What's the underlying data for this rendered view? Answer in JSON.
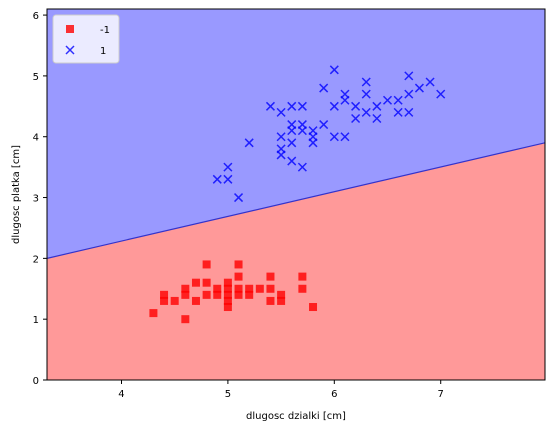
{
  "chart_data": {
    "type": "scatter",
    "xlabel": "dlugosc dzialki [cm]",
    "ylabel": "dlugosc platka [cm]",
    "xlim": [
      3.3,
      7.98
    ],
    "ylim": [
      0,
      6.1
    ],
    "x_ticks": [
      "4",
      "5",
      "6",
      "7"
    ],
    "y_ticks": [
      "0",
      "1",
      "2",
      "3",
      "4",
      "5",
      "6"
    ],
    "grid": false,
    "legend_position": "top-left",
    "decision_boundary": {
      "points": [
        [
          3.3,
          2.0
        ],
        [
          7.98,
          3.9
        ]
      ],
      "upper_region_label": "1",
      "lower_region_label": "-1",
      "upper_color": "#9999ff",
      "lower_color": "#ff9999",
      "line_color": "#3333cc"
    },
    "series": [
      {
        "name": "-1",
        "marker": "square",
        "color": "#ff0000",
        "points": [
          [
            4.3,
            1.1
          ],
          [
            4.4,
            1.3
          ],
          [
            4.4,
            1.4
          ],
          [
            4.5,
            1.3
          ],
          [
            4.6,
            1.0
          ],
          [
            4.6,
            1.4
          ],
          [
            4.6,
            1.5
          ],
          [
            4.7,
            1.3
          ],
          [
            4.7,
            1.6
          ],
          [
            4.8,
            1.4
          ],
          [
            4.8,
            1.6
          ],
          [
            4.8,
            1.9
          ],
          [
            4.9,
            1.4
          ],
          [
            4.9,
            1.5
          ],
          [
            5.0,
            1.2
          ],
          [
            5.0,
            1.3
          ],
          [
            5.0,
            1.4
          ],
          [
            5.0,
            1.5
          ],
          [
            5.0,
            1.6
          ],
          [
            5.1,
            1.4
          ],
          [
            5.1,
            1.5
          ],
          [
            5.1,
            1.7
          ],
          [
            5.1,
            1.9
          ],
          [
            5.2,
            1.4
          ],
          [
            5.2,
            1.5
          ],
          [
            5.3,
            1.5
          ],
          [
            5.4,
            1.3
          ],
          [
            5.4,
            1.5
          ],
          [
            5.4,
            1.7
          ],
          [
            5.5,
            1.3
          ],
          [
            5.5,
            1.4
          ],
          [
            5.7,
            1.5
          ],
          [
            5.7,
            1.7
          ],
          [
            5.8,
            1.2
          ]
        ]
      },
      {
        "name": "1",
        "marker": "x",
        "color": "#0000ff",
        "points": [
          [
            4.9,
            3.3
          ],
          [
            5.0,
            3.3
          ],
          [
            5.0,
            3.5
          ],
          [
            5.1,
            3.0
          ],
          [
            5.2,
            3.9
          ],
          [
            5.4,
            4.5
          ],
          [
            5.5,
            3.7
          ],
          [
            5.5,
            3.8
          ],
          [
            5.5,
            4.0
          ],
          [
            5.5,
            4.4
          ],
          [
            5.6,
            3.6
          ],
          [
            5.6,
            3.9
          ],
          [
            5.6,
            4.1
          ],
          [
            5.6,
            4.2
          ],
          [
            5.6,
            4.5
          ],
          [
            5.7,
            3.5
          ],
          [
            5.7,
            4.1
          ],
          [
            5.7,
            4.2
          ],
          [
            5.7,
            4.5
          ],
          [
            5.8,
            3.9
          ],
          [
            5.8,
            4.0
          ],
          [
            5.8,
            4.1
          ],
          [
            5.9,
            4.2
          ],
          [
            5.9,
            4.8
          ],
          [
            6.0,
            4.0
          ],
          [
            6.0,
            4.5
          ],
          [
            6.0,
            5.1
          ],
          [
            6.1,
            4.0
          ],
          [
            6.1,
            4.6
          ],
          [
            6.1,
            4.7
          ],
          [
            6.2,
            4.3
          ],
          [
            6.2,
            4.5
          ],
          [
            6.3,
            4.4
          ],
          [
            6.3,
            4.7
          ],
          [
            6.3,
            4.9
          ],
          [
            6.4,
            4.3
          ],
          [
            6.4,
            4.5
          ],
          [
            6.5,
            4.6
          ],
          [
            6.6,
            4.4
          ],
          [
            6.6,
            4.6
          ],
          [
            6.7,
            4.4
          ],
          [
            6.7,
            4.7
          ],
          [
            6.7,
            5.0
          ],
          [
            6.8,
            4.8
          ],
          [
            6.9,
            4.9
          ],
          [
            7.0,
            4.7
          ]
        ]
      }
    ]
  }
}
